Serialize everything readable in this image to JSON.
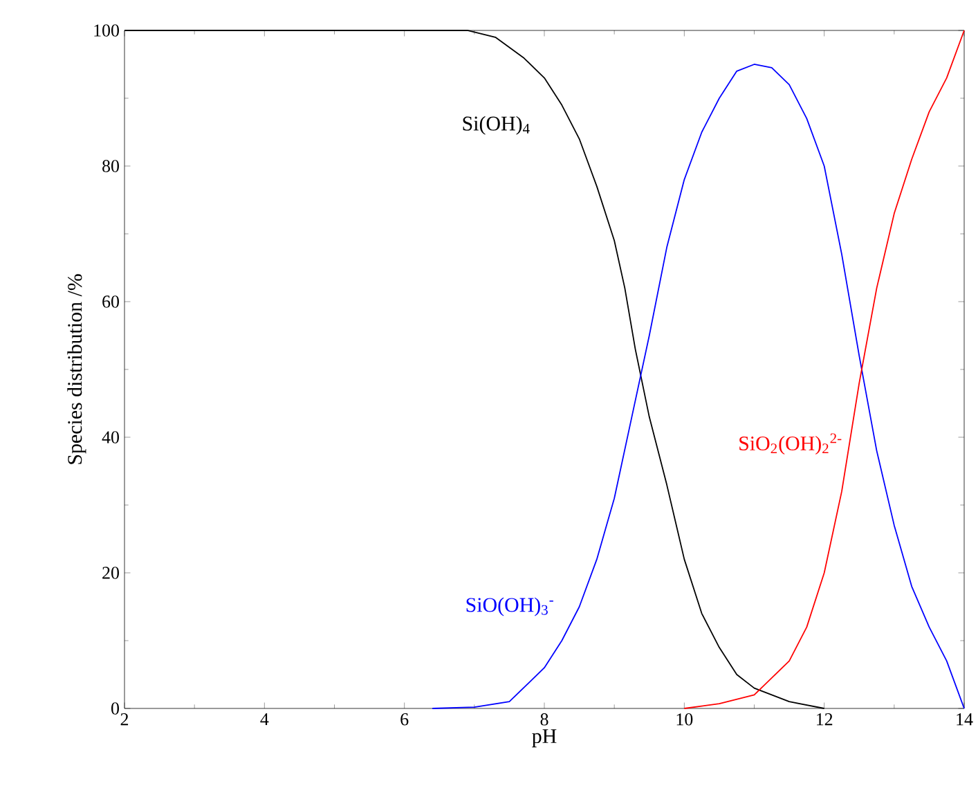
{
  "chart_data": {
    "type": "line",
    "xlabel": "pH",
    "ylabel": "Species distribution /%",
    "xlim": [
      2,
      14
    ],
    "ylim": [
      0,
      100
    ],
    "xticks": [
      2,
      4,
      6,
      8,
      10,
      12,
      14
    ],
    "yticks": [
      0,
      20,
      40,
      60,
      80,
      100
    ],
    "grid": false,
    "marker": "none",
    "line_style": "solid",
    "series": [
      {
        "name": "Si(OH)$_{4}$",
        "color": "#000000",
        "x": [
          2,
          6,
          6.9,
          7.3,
          7.7,
          8,
          8.25,
          8.5,
          8.75,
          9,
          9.15,
          9.3,
          9.5,
          9.75,
          10,
          10.25,
          10.5,
          10.75,
          11,
          11.25,
          11.5,
          12
        ],
        "values": [
          100,
          100,
          100,
          99,
          96,
          93,
          89,
          84,
          77,
          69,
          62,
          53,
          43,
          33,
          22,
          14,
          9,
          5,
          3,
          2,
          1,
          0
        ]
      },
      {
        "name": "SiO(OH)$_{3}$$^{-}$",
        "color": "#0000ff",
        "x": [
          6.4,
          7,
          7.5,
          8,
          8.25,
          8.5,
          8.75,
          9,
          9.25,
          9.5,
          9.75,
          10,
          10.25,
          10.5,
          10.75,
          11,
          11.25,
          11.5,
          11.75,
          12,
          12.25,
          12.5,
          12.75,
          13,
          13.25,
          13.5,
          13.75,
          14
        ],
        "values": [
          0,
          0.2,
          1,
          6,
          10,
          15,
          22,
          31,
          43,
          55,
          68,
          78,
          85,
          90,
          94,
          95,
          94.5,
          92,
          87,
          80,
          67,
          52,
          38,
          27,
          18,
          12,
          7,
          0
        ]
      },
      {
        "name": "SiO$_{2}$(OH)$_{2}$$^{2-}$",
        "color": "#ff0000",
        "x": [
          10,
          10.5,
          11,
          11.5,
          11.75,
          12,
          12.25,
          12.5,
          12.75,
          13,
          13.25,
          13.5,
          13.75,
          14
        ],
        "values": [
          0,
          0.7,
          2,
          7,
          12,
          20,
          32,
          48,
          62,
          73,
          81,
          88,
          93,
          100
        ]
      }
    ]
  }
}
